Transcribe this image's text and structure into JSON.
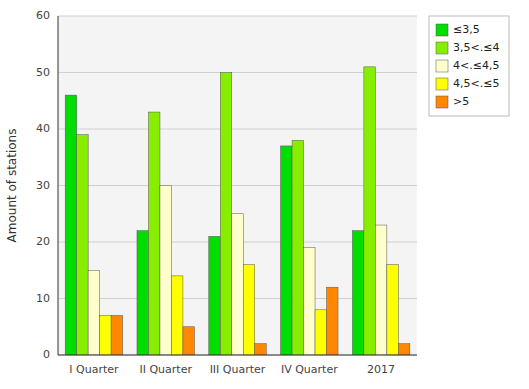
{
  "chart_data": {
    "type": "bar",
    "categories": [
      "I Quarter",
      "II Quarter",
      "III Quarter",
      "IV Quarter",
      "2017"
    ],
    "series": [
      {
        "name": "≤3,5",
        "color": "#00dd00",
        "values": [
          46,
          22,
          21,
          37,
          22
        ]
      },
      {
        "name": "3,5<.≤4",
        "color": "#88ee00",
        "values": [
          39,
          43,
          50,
          38,
          51
        ]
      },
      {
        "name": "4<.≤4,5",
        "color": "#ffffcc",
        "values": [
          15,
          30,
          25,
          19,
          23
        ]
      },
      {
        "name": "4,5<.≤5",
        "color": "#ffff00",
        "values": [
          7,
          14,
          16,
          8,
          16
        ]
      },
      {
        "name": ">5",
        "color": "#ff8800",
        "values": [
          7,
          5,
          2,
          12,
          2
        ]
      }
    ],
    "ylabel": "Amount of stations",
    "ylim": [
      0,
      60
    ],
    "yticks": [
      0,
      10,
      20,
      30,
      40,
      50,
      60
    ],
    "grid": true,
    "legend": "upper right"
  }
}
